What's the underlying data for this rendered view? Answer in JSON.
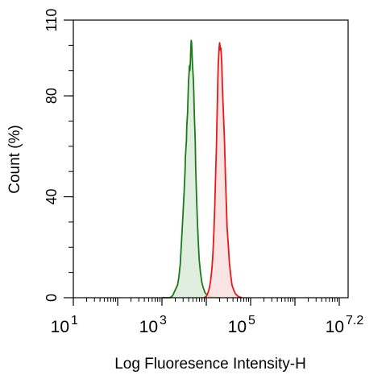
{
  "chart_data": {
    "type": "area",
    "title": "",
    "xlabel": "Log Fluoresence Intensity-H",
    "ylabel": "Count (%)",
    "x_scale": "log10",
    "xlim_log10": [
      1,
      7.2
    ],
    "ylim": [
      0,
      110
    ],
    "y_ticks": [
      0,
      40,
      80,
      110
    ],
    "y_tick_labels": [
      "0",
      "40",
      "80",
      "110"
    ],
    "x_ticks": [
      {
        "base": "10",
        "exp": "1",
        "log": 1
      },
      {
        "base": "10",
        "exp": "3",
        "log": 3
      },
      {
        "base": "10",
        "exp": "5",
        "log": 5
      },
      {
        "base": "10",
        "exp": "7.2",
        "log": 7.2
      }
    ],
    "grid": false,
    "legend": "none",
    "series": [
      {
        "color": "#1a7a1a",
        "fill": "#d9ebd9",
        "points_log_x": [
          [
            3.0,
            0
          ],
          [
            3.18,
            0
          ],
          [
            3.24,
            0.8
          ],
          [
            3.27,
            2
          ],
          [
            3.31,
            3.5
          ],
          [
            3.35,
            5
          ],
          [
            3.38,
            8
          ],
          [
            3.41,
            13
          ],
          [
            3.44,
            22
          ],
          [
            3.47,
            32
          ],
          [
            3.5,
            42
          ],
          [
            3.52,
            50
          ],
          [
            3.53,
            56
          ],
          [
            3.55,
            62
          ],
          [
            3.56,
            68
          ],
          [
            3.58,
            74
          ],
          [
            3.59,
            80
          ],
          [
            3.6,
            86
          ],
          [
            3.61,
            89
          ],
          [
            3.62,
            92
          ],
          [
            3.63,
            90
          ],
          [
            3.64,
            93
          ],
          [
            3.65,
            98
          ],
          [
            3.66,
            102
          ],
          [
            3.67,
            101
          ],
          [
            3.68,
            96
          ],
          [
            3.69,
            92
          ],
          [
            3.7,
            89
          ],
          [
            3.71,
            86
          ],
          [
            3.72,
            80
          ],
          [
            3.73,
            72
          ],
          [
            3.75,
            62
          ],
          [
            3.76,
            52
          ],
          [
            3.78,
            40
          ],
          [
            3.8,
            30
          ],
          [
            3.82,
            22
          ],
          [
            3.84,
            15
          ],
          [
            3.87,
            10
          ],
          [
            3.9,
            6
          ],
          [
            3.93,
            4
          ],
          [
            3.97,
            2
          ],
          [
            4.02,
            1
          ],
          [
            4.1,
            0.3
          ],
          [
            4.3,
            0
          ]
        ]
      },
      {
        "color": "#e81818",
        "fill": "#f9dede",
        "points_log_x": [
          [
            3.95,
            0
          ],
          [
            4.0,
            0.5
          ],
          [
            4.04,
            2
          ],
          [
            4.07,
            4
          ],
          [
            4.1,
            7
          ],
          [
            4.13,
            12
          ],
          [
            4.15,
            18
          ],
          [
            4.17,
            26
          ],
          [
            4.19,
            36
          ],
          [
            4.21,
            48
          ],
          [
            4.23,
            60
          ],
          [
            4.24,
            70
          ],
          [
            4.25,
            78
          ],
          [
            4.26,
            86
          ],
          [
            4.27,
            92
          ],
          [
            4.28,
            96
          ],
          [
            4.29,
            99
          ],
          [
            4.3,
            101
          ],
          [
            4.31,
            100
          ],
          [
            4.32,
            98
          ],
          [
            4.33,
            99
          ],
          [
            4.34,
            96
          ],
          [
            4.35,
            92
          ],
          [
            4.36,
            86
          ],
          [
            4.37,
            80
          ],
          [
            4.39,
            72
          ],
          [
            4.41,
            62
          ],
          [
            4.43,
            50
          ],
          [
            4.45,
            38
          ],
          [
            4.47,
            28
          ],
          [
            4.5,
            20
          ],
          [
            4.52,
            14
          ],
          [
            4.55,
            9
          ],
          [
            4.58,
            5
          ],
          [
            4.62,
            3
          ],
          [
            4.66,
            1.5
          ],
          [
            4.72,
            0.5
          ],
          [
            4.8,
            0
          ]
        ]
      }
    ]
  }
}
